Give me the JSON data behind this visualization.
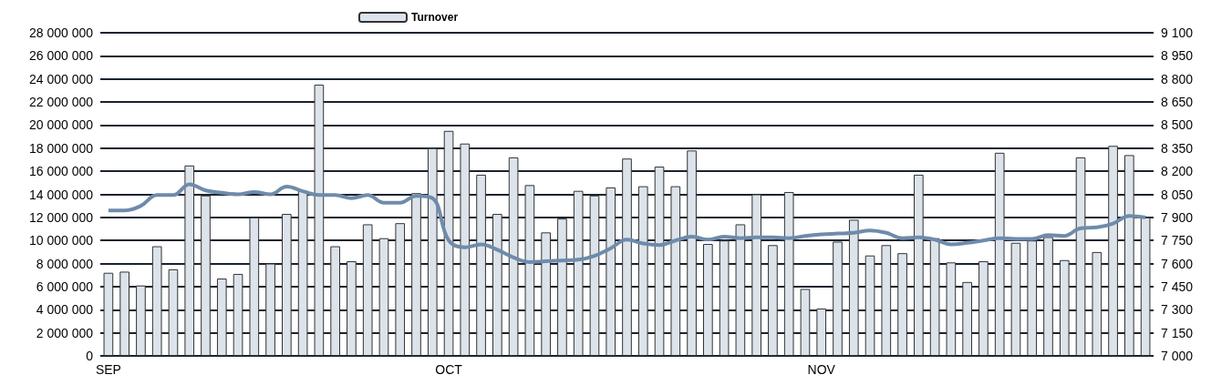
{
  "chart_data": {
    "type": "bar",
    "categories": [
      "SEP",
      null,
      null,
      null,
      null,
      null,
      null,
      null,
      null,
      null,
      null,
      null,
      null,
      null,
      null,
      null,
      null,
      null,
      null,
      null,
      null,
      "OCT",
      null,
      null,
      null,
      null,
      null,
      null,
      null,
      null,
      null,
      null,
      null,
      null,
      null,
      null,
      null,
      null,
      null,
      null,
      null,
      null,
      null,
      null,
      "NOV",
      null,
      null,
      null,
      null,
      null,
      null,
      null,
      null,
      null,
      null,
      null,
      null,
      null,
      null,
      null,
      null,
      null,
      null,
      null,
      null
    ],
    "series": [
      {
        "name": "Turnover",
        "color": "#dce3ea",
        "values": [
          7200000,
          7300000,
          6100000,
          9500000,
          7500000,
          16500000,
          13900000,
          6700000,
          7100000,
          12000000,
          8000000,
          12300000,
          14300000,
          23500000,
          9500000,
          8200000,
          11400000,
          10200000,
          11500000,
          14100000,
          18000000,
          19500000,
          18400000,
          15700000,
          12300000,
          17200000,
          14800000,
          10700000,
          11900000,
          14300000,
          13900000,
          14600000,
          17100000,
          14700000,
          16400000,
          14700000,
          17800000,
          9700000,
          10000000,
          11400000,
          14000000,
          9600000,
          14200000,
          5800000,
          4100000,
          9900000,
          11800000,
          8700000,
          9600000,
          8900000,
          15700000,
          10200000,
          8100000,
          6400000,
          8200000,
          17600000,
          9800000,
          10000000,
          10300000,
          8300000,
          17200000,
          9000000,
          18200000,
          17400000,
          12000000
        ]
      },
      {
        "type": "line",
        "axis": "y2",
        "color": "#6f8bab",
        "values": [
          7945,
          7945,
          7975,
          8045,
          8045,
          8115,
          8075,
          8060,
          8050,
          8065,
          8050,
          8100,
          8070,
          8045,
          8045,
          8025,
          8045,
          7995,
          7995,
          8040,
          8025,
          7750,
          7705,
          7725,
          7690,
          7640,
          7610,
          7615,
          7620,
          7625,
          7650,
          7700,
          7755,
          7730,
          7720,
          7750,
          7775,
          7755,
          7775,
          7765,
          7770,
          7770,
          7765,
          7780,
          7790,
          7795,
          7800,
          7815,
          7800,
          7765,
          7770,
          7755,
          7725,
          7735,
          7750,
          7765,
          7760,
          7760,
          7785,
          7780,
          7830,
          7835,
          7860,
          7910,
          7900
        ]
      }
    ],
    "ylim": [
      0,
      28000000
    ],
    "yticks": [
      {
        "value": 0,
        "label": "0"
      },
      {
        "value": 2000000,
        "label": "2 000 000"
      },
      {
        "value": 4000000,
        "label": "4 000 000"
      },
      {
        "value": 6000000,
        "label": "6 000 000"
      },
      {
        "value": 8000000,
        "label": "8 000 000"
      },
      {
        "value": 10000000,
        "label": "10 000 000"
      },
      {
        "value": 12000000,
        "label": "12 000 000"
      },
      {
        "value": 14000000,
        "label": "14 000 000"
      },
      {
        "value": 16000000,
        "label": "16 000 000"
      },
      {
        "value": 18000000,
        "label": "18 000 000"
      },
      {
        "value": 20000000,
        "label": "20 000 000"
      },
      {
        "value": 22000000,
        "label": "22 000 000"
      },
      {
        "value": 24000000,
        "label": "24 000 000"
      },
      {
        "value": 26000000,
        "label": "26 000 000"
      },
      {
        "value": 28000000,
        "label": "28 000 000"
      }
    ],
    "y2lim": [
      7000,
      9100
    ],
    "y2ticks": [
      {
        "value": 7000,
        "label": "7 000"
      },
      {
        "value": 7150,
        "label": "7 150"
      },
      {
        "value": 7300,
        "label": "7 300"
      },
      {
        "value": 7450,
        "label": "7 450"
      },
      {
        "value": 7600,
        "label": "7 600"
      },
      {
        "value": 7750,
        "label": "7 750"
      },
      {
        "value": 7900,
        "label": "7 900"
      },
      {
        "value": 8050,
        "label": "8 050"
      },
      {
        "value": 8200,
        "label": "8 200"
      },
      {
        "value": 8350,
        "label": "8 350"
      },
      {
        "value": 8500,
        "label": "8 500"
      },
      {
        "value": 8650,
        "label": "8 650"
      },
      {
        "value": 8800,
        "label": "8 800"
      },
      {
        "value": 8950,
        "label": "8 950"
      },
      {
        "value": 9100,
        "label": "9 100"
      }
    ],
    "grid": "y",
    "legend": "top"
  }
}
